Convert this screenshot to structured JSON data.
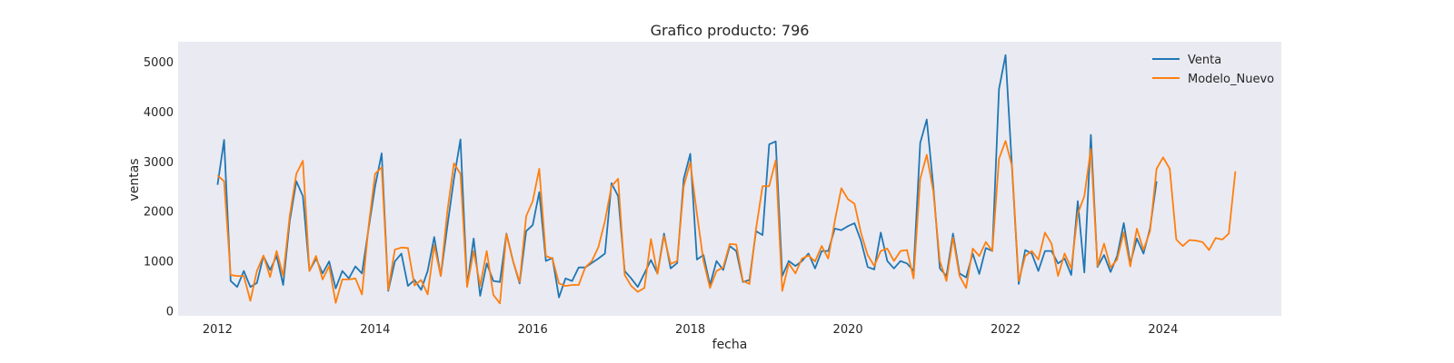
{
  "chart_data": {
    "type": "line",
    "title": "Grafico producto: 796",
    "xlabel": "fecha",
    "ylabel": "ventas",
    "x_start": "2012-01",
    "x_frequency": "monthly",
    "xlim": [
      "2011-07",
      "2025-07"
    ],
    "ylim": [
      -100,
      5400
    ],
    "x_ticks": [
      "2012",
      "2014",
      "2016",
      "2018",
      "2020",
      "2022",
      "2024"
    ],
    "y_ticks": [
      0,
      1000,
      2000,
      3000,
      4000,
      5000
    ],
    "grid": false,
    "background": "#eaeaf2",
    "legend_position": "top-right",
    "series": [
      {
        "name": "Venta",
        "color": "#1f77b4",
        "values": [
          2530,
          3430,
          600,
          480,
          800,
          480,
          560,
          1100,
          820,
          1100,
          520,
          1800,
          2600,
          2300,
          800,
          1050,
          750,
          990,
          450,
          800,
          650,
          890,
          750,
          1650,
          2500,
          3160,
          400,
          990,
          1150,
          500,
          620,
          420,
          800,
          1480,
          700,
          1700,
          2650,
          3440,
          500,
          1450,
          300,
          950,
          600,
          580,
          1550,
          1000,
          550,
          1600,
          1720,
          2380,
          1000,
          1060,
          270,
          650,
          600,
          870,
          870,
          960,
          1050,
          1150,
          2560,
          2300,
          800,
          650,
          480,
          750,
          1020,
          750,
          1550,
          850,
          960,
          2650,
          3150,
          1030,
          1120,
          520,
          1000,
          820,
          1300,
          1200,
          580,
          620,
          1600,
          1520,
          3340,
          3400,
          700,
          1000,
          900,
          1000,
          1150,
          850,
          1200,
          1200,
          1650,
          1620,
          1700,
          1760,
          1400,
          880,
          830,
          1570,
          1000,
          850,
          1000,
          950,
          800,
          3370,
          3840,
          2500,
          850,
          700,
          1550,
          750,
          670,
          1150,
          740,
          1260,
          1200,
          4450,
          5130,
          2850,
          540,
          1220,
          1150,
          800,
          1200,
          1200,
          950,
          1050,
          720,
          2200,
          770,
          3530,
          880,
          1120,
          780,
          1100,
          1760,
          950,
          1450,
          1150,
          1650,
          2600
        ]
      },
      {
        "name": "Modelo_Nuevo",
        "color": "#ff7f0e",
        "values": [
          2720,
          2600,
          720,
          700,
          700,
          200,
          800,
          1110,
          680,
          1200,
          700,
          1900,
          2750,
          3010,
          800,
          1100,
          630,
          900,
          160,
          630,
          630,
          650,
          330,
          1700,
          2750,
          2880,
          420,
          1230,
          1270,
          1260,
          510,
          620,
          330,
          1320,
          700,
          2000,
          2960,
          2750,
          480,
          1200,
          500,
          1200,
          320,
          150,
          1540,
          1000,
          580,
          1900,
          2200,
          2850,
          1100,
          1050,
          550,
          500,
          520,
          520,
          870,
          1000,
          1280,
          1800,
          2500,
          2650,
          720,
          500,
          380,
          460,
          1440,
          740,
          1500,
          940,
          1000,
          2500,
          2980,
          1950,
          1000,
          460,
          800,
          870,
          1340,
          1330,
          600,
          540,
          1640,
          2500,
          2500,
          3020,
          400,
          950,
          750,
          1050,
          1110,
          990,
          1300,
          1050,
          1800,
          2460,
          2240,
          2150,
          1560,
          1120,
          900,
          1200,
          1250,
          1000,
          1200,
          1220,
          650,
          2650,
          3130,
          2400,
          1000,
          600,
          1470,
          700,
          460,
          1250,
          1100,
          1380,
          1200,
          3050,
          3410,
          2900,
          600,
          1100,
          1200,
          1030,
          1570,
          1350,
          700,
          1150,
          850,
          1950,
          2300,
          3250,
          900,
          1350,
          870,
          1030,
          1580,
          890,
          1650,
          1220,
          1600,
          2850,
          3080,
          2850,
          1430,
          1300,
          1420,
          1410,
          1380,
          1220,
          1460,
          1430,
          1550,
          2800
        ]
      }
    ]
  }
}
